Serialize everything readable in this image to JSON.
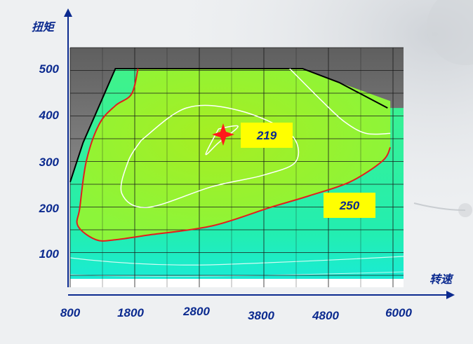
{
  "chart_data": {
    "type": "contour",
    "xlabel": "转速",
    "ylabel": "扭矩",
    "x_ticks": [
      "800",
      "1800",
      "2800",
      "3800",
      "4800",
      "6000"
    ],
    "y_ticks": [
      "500",
      "400",
      "300",
      "200",
      "100"
    ],
    "xlim": [
      800,
      6000
    ],
    "ylim": [
      0,
      560
    ],
    "grid": true,
    "full_load_curve": [
      [
        800,
        255
      ],
      [
        1000,
        340
      ],
      [
        1500,
        500
      ],
      [
        4400,
        500
      ],
      [
        5000,
        470
      ],
      [
        5900,
        415
      ]
    ],
    "contours": [
      {
        "label": "250",
        "type": "fuel_consumption",
        "points": [
          [
            1850,
            500
          ],
          [
            1750,
            445
          ],
          [
            1500,
            420
          ],
          [
            1250,
            380
          ],
          [
            1050,
            300
          ],
          [
            950,
            200
          ],
          [
            920,
            160
          ],
          [
            1200,
            130
          ],
          [
            1500,
            130
          ],
          [
            2000,
            140
          ],
          [
            3000,
            160
          ],
          [
            3900,
            200
          ],
          [
            4500,
            225
          ],
          [
            5200,
            255
          ],
          [
            5800,
            300
          ],
          [
            5950,
            330
          ]
        ]
      },
      {
        "label": "219",
        "type": "minimum_fuel_consumption",
        "points": [
          [
            3100,
            370
          ],
          [
            2900,
            315
          ],
          [
            3100,
            340
          ],
          [
            3400,
            375
          ]
        ]
      },
      {
        "type": "fuel_consumption",
        "points": [
          [
            1900,
            345
          ],
          [
            2600,
            415
          ],
          [
            3400,
            410
          ],
          [
            4200,
            360
          ],
          [
            4300,
            300
          ],
          [
            3800,
            270
          ],
          [
            3000,
            245
          ],
          [
            2000,
            200
          ],
          [
            1600,
            230
          ],
          [
            1700,
            300
          ]
        ]
      },
      {
        "type": "fuel_consumption",
        "points": [
          [
            4200,
            500
          ],
          [
            4700,
            430
          ],
          [
            5100,
            385
          ],
          [
            5500,
            360
          ],
          [
            5950,
            360
          ]
        ]
      }
    ],
    "annotations": [
      {
        "text": "219",
        "x": 3200,
        "y": 348
      },
      {
        "text": "250",
        "x": 4900,
        "y": 240
      }
    ],
    "colors": {
      "plot_top": "#7a7a7a",
      "fill_low": "#1ff0c0",
      "fill_mid": "#4dfa80",
      "fill_high": "#8cf53a",
      "core": "#a6ee22",
      "contour_250": "#e51d1d",
      "contour_other": "#ffffff",
      "callout": "#ffff00",
      "axis": "#0b2a8f"
    }
  }
}
